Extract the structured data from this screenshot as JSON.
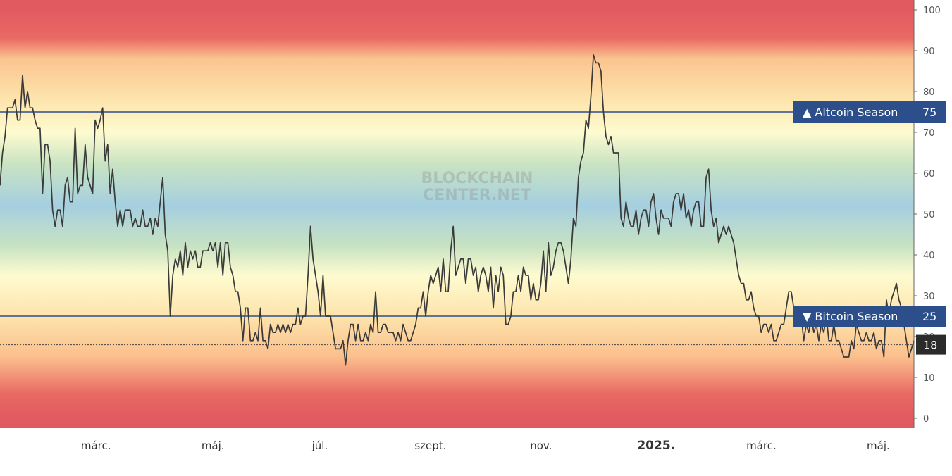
{
  "chart_data": {
    "type": "line",
    "title": "",
    "watermark": [
      "BLOCKCHAIN",
      "CENTER.NET"
    ],
    "ylim": [
      0,
      100
    ],
    "y_ticks": [
      0,
      10,
      20,
      30,
      40,
      50,
      60,
      70,
      80,
      90,
      100
    ],
    "x_ticks": [
      {
        "label": "márc.",
        "pos": 0.105,
        "bold": false
      },
      {
        "label": "máj.",
        "pos": 0.233,
        "bold": false
      },
      {
        "label": "júl.",
        "pos": 0.35,
        "bold": false
      },
      {
        "label": "szept.",
        "pos": 0.471,
        "bold": false
      },
      {
        "label": "nov.",
        "pos": 0.592,
        "bold": false
      },
      {
        "label": "2025.",
        "pos": 0.718,
        "bold": true
      },
      {
        "label": "márc.",
        "pos": 0.833,
        "bold": false
      },
      {
        "label": "máj.",
        "pos": 0.961,
        "bold": false
      }
    ],
    "thresholds": [
      {
        "label": "▲ Altcoin Season",
        "value": 75,
        "color": "#2c4f8c"
      },
      {
        "label": "▼ Bitcoin Season",
        "value": 25,
        "color": "#2c4f8c"
      }
    ],
    "current_value": {
      "value": 18,
      "color": "#2b2b2b"
    },
    "background_gradient": [
      {
        "value": 100,
        "color": "#e15a60"
      },
      {
        "value": 93,
        "color": "#e96a64"
      },
      {
        "value": 88,
        "color": "#fbc490"
      },
      {
        "value": 78,
        "color": "#fde4ac"
      },
      {
        "value": 70,
        "color": "#fefbd0"
      },
      {
        "value": 62,
        "color": "#c8e3c2"
      },
      {
        "value": 52,
        "color": "#a5cfe0"
      },
      {
        "value": 42,
        "color": "#c8e3c2"
      },
      {
        "value": 35,
        "color": "#fefbd0"
      },
      {
        "value": 25,
        "color": "#fde4ac"
      },
      {
        "value": 15,
        "color": "#fbbf8c"
      },
      {
        "value": 6,
        "color": "#e96a64"
      },
      {
        "value": 0,
        "color": "#e15a60"
      }
    ],
    "series": [
      {
        "color": "#3a3a3a",
        "values": [
          57,
          65,
          69,
          76,
          76,
          76,
          78,
          73,
          73,
          84,
          76,
          80,
          76,
          76,
          73,
          71,
          71,
          55,
          67,
          67,
          63,
          51,
          47,
          51,
          51,
          47,
          57,
          59,
          53,
          53,
          71,
          55,
          57,
          57,
          67,
          59,
          57,
          55,
          73,
          71,
          73,
          76,
          63,
          67,
          55,
          61,
          53,
          47,
          51,
          47,
          51,
          51,
          51,
          47,
          49,
          47,
          47,
          51,
          47,
          47,
          49,
          45,
          49,
          47,
          53,
          59,
          45,
          41,
          25,
          35,
          39,
          37,
          41,
          35,
          43,
          37,
          41,
          39,
          41,
          37,
          37,
          41,
          41,
          41,
          43,
          41,
          43,
          37,
          43,
          35,
          43,
          43,
          37,
          35,
          31,
          31,
          27,
          19,
          27,
          27,
          19,
          19,
          21,
          19,
          27,
          19,
          19,
          17,
          23,
          21,
          21,
          23,
          21,
          23,
          21,
          23,
          21,
          23,
          23,
          27,
          23,
          25,
          25,
          35,
          47,
          39,
          35,
          31,
          25,
          35,
          25,
          25,
          25,
          21,
          17,
          17,
          17,
          19,
          13,
          19,
          23,
          23,
          19,
          23,
          19,
          19,
          21,
          19,
          23,
          21,
          31,
          21,
          21,
          23,
          23,
          21,
          21,
          21,
          19,
          21,
          19,
          23,
          21,
          19,
          19,
          21,
          23,
          27,
          27,
          31,
          25,
          31,
          35,
          33,
          35,
          37,
          31,
          39,
          31,
          31,
          41,
          47,
          35,
          37,
          39,
          39,
          33,
          39,
          39,
          35,
          37,
          31,
          35,
          37,
          35,
          31,
          37,
          27,
          35,
          31,
          37,
          35,
          23,
          23,
          25,
          31,
          31,
          35,
          31,
          37,
          35,
          35,
          29,
          33,
          29,
          29,
          33,
          41,
          31,
          43,
          35,
          37,
          41,
          43,
          43,
          41,
          37,
          33,
          39,
          49,
          47,
          59,
          63,
          65,
          73,
          71,
          79,
          89,
          87,
          87,
          85,
          75,
          69,
          67,
          69,
          65,
          65,
          65,
          49,
          47,
          53,
          49,
          47,
          47,
          51,
          45,
          49,
          51,
          51,
          47,
          53,
          55,
          49,
          45,
          51,
          49,
          49,
          49,
          47,
          53,
          55,
          55,
          51,
          55,
          49,
          51,
          47,
          51,
          53,
          53,
          47,
          47,
          59,
          61,
          51,
          47,
          49,
          43,
          45,
          47,
          45,
          47,
          45,
          43,
          39,
          35,
          33,
          33,
          29,
          29,
          31,
          27,
          25,
          25,
          21,
          23,
          23,
          21,
          23,
          19,
          19,
          21,
          23,
          23,
          27,
          31,
          31,
          27,
          25,
          23,
          25,
          19,
          23,
          21,
          25,
          21,
          23,
          19,
          23,
          21,
          25,
          19,
          19,
          23,
          19,
          19,
          17,
          15,
          15,
          15,
          19,
          17,
          23,
          21,
          19,
          19,
          21,
          19,
          19,
          21,
          17,
          19,
          19,
          15,
          29,
          25,
          29,
          31,
          33,
          29,
          27,
          23,
          19,
          15,
          17,
          19
        ]
      }
    ]
  }
}
